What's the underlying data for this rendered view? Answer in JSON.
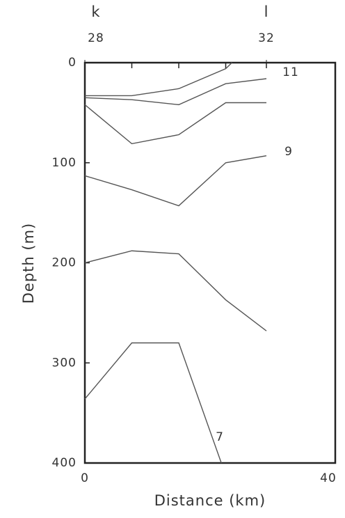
{
  "chart_data": {
    "type": "line",
    "xlabel": "Distance (km)",
    "ylabel": "Depth (m)",
    "xlim": [
      0,
      40
    ],
    "xticks": [
      0,
      40
    ],
    "ylim": [
      0,
      400
    ],
    "yticks": [
      0,
      100,
      200,
      300,
      400
    ],
    "y_inverted": true,
    "stations": [
      {
        "label": "k",
        "number": 28,
        "x": 0
      },
      {
        "label": "l",
        "number": 32,
        "x": 29
      }
    ],
    "annotations": [
      "11",
      "9",
      "7"
    ],
    "series": [
      {
        "color": "#555555",
        "x": [
          0,
          7.5,
          15,
          22.5,
          23.5
        ],
        "values": [
          33,
          33,
          26,
          6,
          0
        ]
      },
      {
        "color": "#555555",
        "x": [
          0,
          7.5,
          15,
          22.5,
          29
        ],
        "values": [
          35,
          37,
          42,
          21,
          16
        ]
      },
      {
        "color": "#555555",
        "x": [
          0,
          7.5,
          15,
          22.5,
          29
        ],
        "values": [
          42,
          81,
          72,
          40,
          40
        ]
      },
      {
        "color": "#555555",
        "x": [
          0,
          7.5,
          15,
          22.5,
          29
        ],
        "values": [
          113,
          127,
          143,
          100,
          93
        ]
      },
      {
        "color": "#555555",
        "x": [
          0,
          7.5,
          15,
          22.5,
          29
        ],
        "values": [
          200,
          188,
          191,
          237,
          268
        ]
      },
      {
        "color": "#555555",
        "x": [
          0,
          7.5,
          15,
          21.8
        ],
        "values": [
          336,
          280,
          280,
          400
        ]
      }
    ]
  }
}
